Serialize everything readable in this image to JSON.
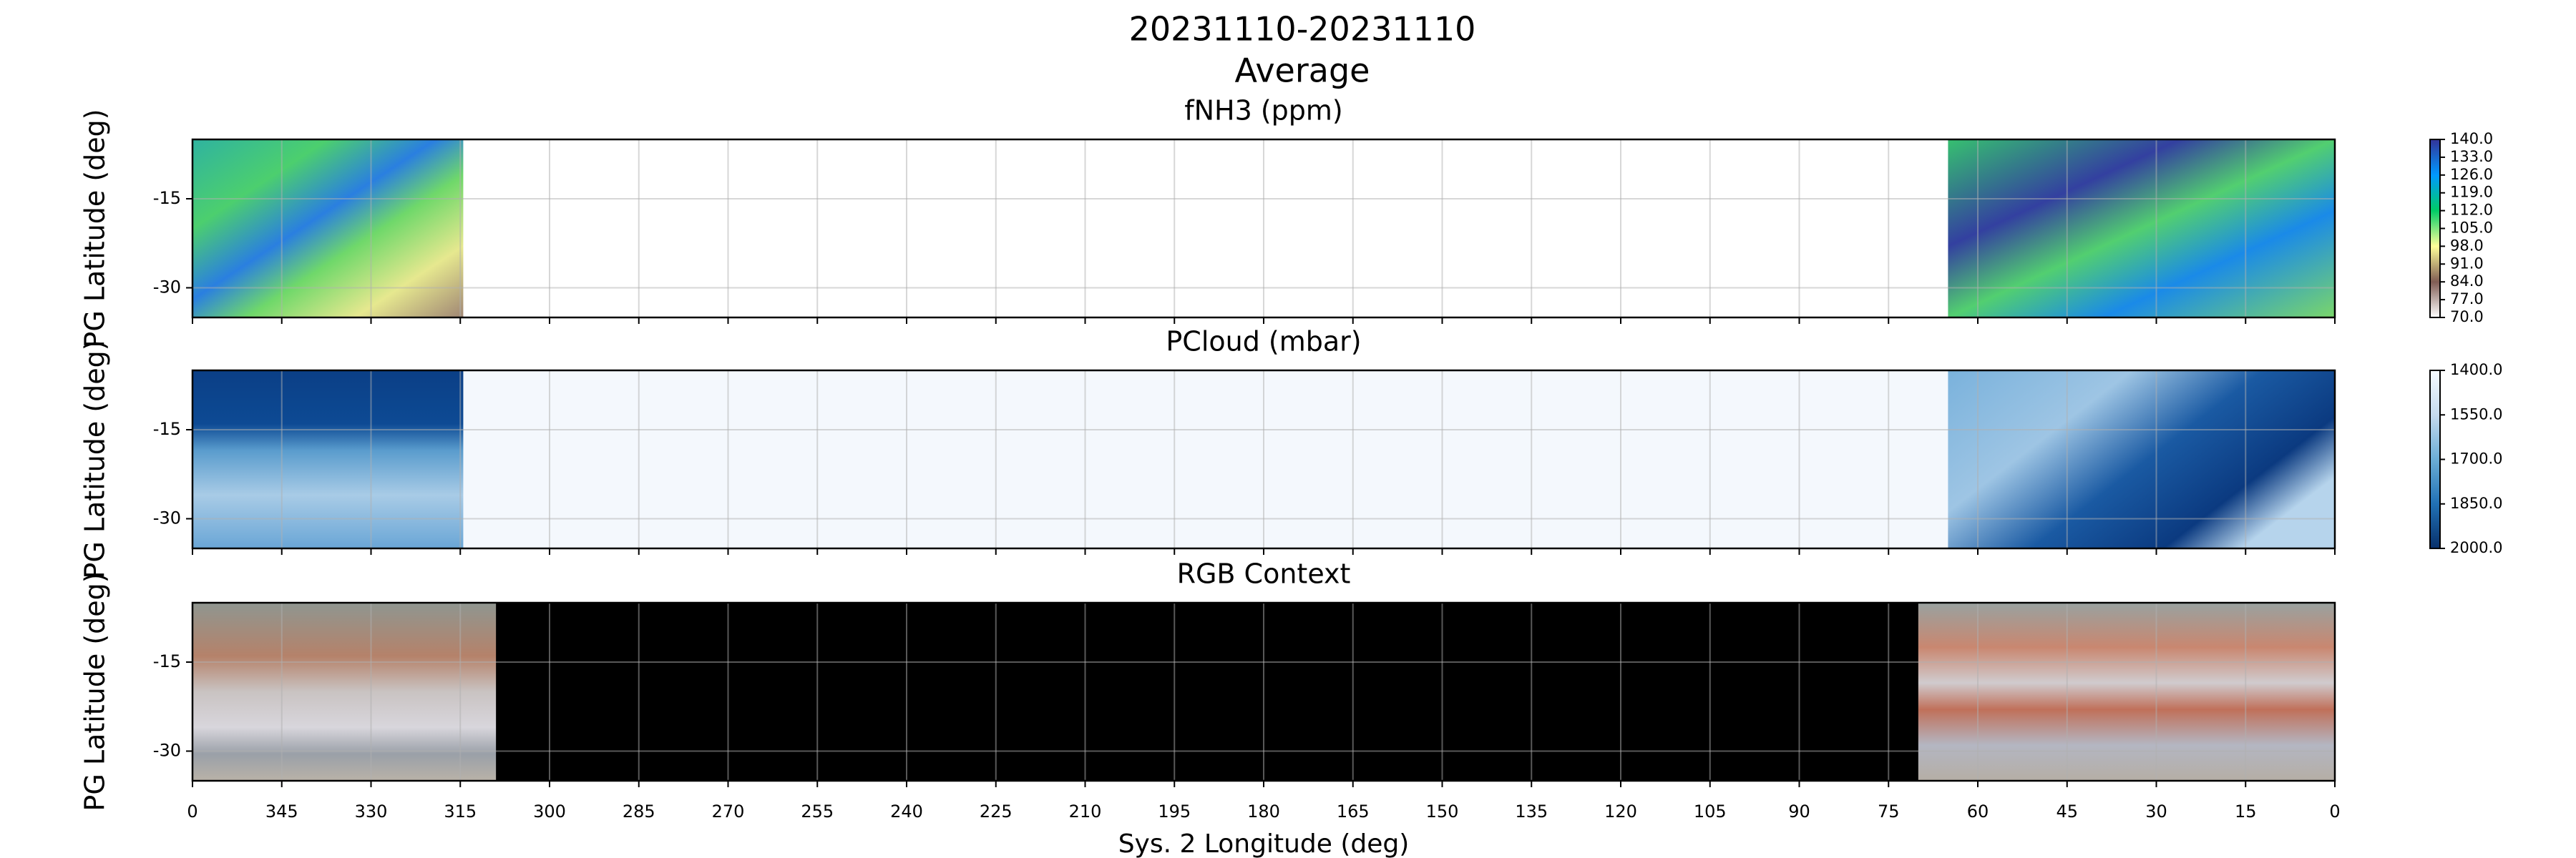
{
  "figure": {
    "title": "20231110-20231110",
    "subtitle": "Average",
    "xlabel": "Sys. 2 Longitude (deg)"
  },
  "chart_data": [
    {
      "type": "heatmap",
      "title": "fNH3 (ppm)",
      "ylabel": "PG Latitude (deg)",
      "xlim": [
        360,
        0
      ],
      "ylim": [
        -35,
        -5
      ],
      "yticks": [
        -15,
        -30
      ],
      "xticks": [
        {
          "value": 360,
          "label": "0"
        },
        345,
        330,
        315,
        300,
        285,
        270,
        255,
        240,
        225,
        210,
        195,
        180,
        165,
        150,
        135,
        120,
        105,
        90,
        75,
        60,
        45,
        30,
        15,
        0
      ],
      "xtick_labels": false,
      "grid": true,
      "background": "#ffffff",
      "coverage": [
        [
          360,
          314.5
        ],
        [
          65,
          0
        ]
      ],
      "colorbar": {
        "lim": [
          70,
          140
        ],
        "colors": [
          "#ffffff",
          "#805c54",
          "#ffff99",
          "#00cc66",
          "#0099ff",
          "#333399"
        ],
        "ticks": [
          {
            "value": 70,
            "label": "70.0"
          },
          {
            "value": 77,
            "label": "77.0"
          },
          {
            "value": 84,
            "label": "84.0"
          },
          {
            "value": 91,
            "label": "91.0"
          },
          {
            "value": 98,
            "label": "98.0"
          },
          {
            "value": 105,
            "label": "105.0"
          },
          {
            "value": 112,
            "label": "112.0"
          },
          {
            "value": 119,
            "label": "119.0"
          },
          {
            "value": 126,
            "label": "126.0"
          },
          {
            "value": 133,
            "label": "133.0"
          },
          {
            "value": 140,
            "label": "140.0"
          }
        ]
      }
    },
    {
      "type": "heatmap",
      "title": "PCloud (mbar)",
      "ylabel": "PG Latitude (deg)",
      "xlim": [
        360,
        0
      ],
      "ylim": [
        -35,
        -5
      ],
      "yticks": [
        -15,
        -30
      ],
      "xticks": [
        {
          "value": 360,
          "label": "0"
        },
        345,
        330,
        315,
        300,
        285,
        270,
        255,
        240,
        225,
        210,
        195,
        180,
        165,
        150,
        135,
        120,
        105,
        90,
        75,
        60,
        45,
        30,
        15,
        0
      ],
      "xtick_labels": false,
      "grid": true,
      "background": "#f4f8fd",
      "coverage": [
        [
          360,
          314.5
        ],
        [
          65,
          0
        ]
      ],
      "colorbar": {
        "lim": [
          2000,
          1400
        ],
        "colors": [
          "#08306b",
          "#2171b5",
          "#6baed6",
          "#c6dbef",
          "#f7fbff"
        ],
        "ticks": [
          {
            "value": 1400,
            "label": "1400.0"
          },
          {
            "value": 1550,
            "label": "1550.0"
          },
          {
            "value": 1700,
            "label": "1700.0"
          },
          {
            "value": 1850,
            "label": "1850.0"
          },
          {
            "value": 2000,
            "label": "2000.0"
          }
        ]
      }
    },
    {
      "type": "image",
      "title": "RGB Context",
      "ylabel": "PG Latitude (deg)",
      "xlim": [
        360,
        0
      ],
      "ylim": [
        -35,
        -5
      ],
      "yticks": [
        -15,
        -30
      ],
      "xticks": [
        {
          "value": 360,
          "label": "0"
        },
        345,
        330,
        315,
        300,
        285,
        270,
        255,
        240,
        225,
        210,
        195,
        180,
        165,
        150,
        135,
        120,
        105,
        90,
        75,
        60,
        45,
        30,
        15,
        0
      ],
      "xtick_labels": true,
      "grid": true,
      "background": "#000000",
      "coverage": [
        [
          360,
          309
        ],
        [
          70,
          0
        ]
      ]
    }
  ]
}
